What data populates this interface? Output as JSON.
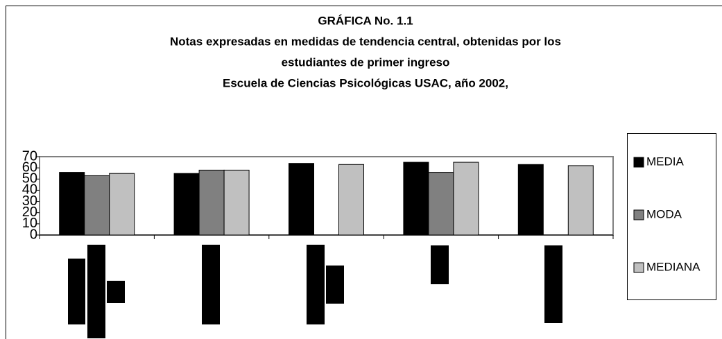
{
  "chart_data": {
    "type": "bar",
    "title": [
      "GRÁFICA No. 1.1",
      "Notas expresadas en medidas de tendencia central, obtenidas por los",
      "estudiantes de primer ingreso",
      "Escuela de Ciencias Psicológicas USAC, año 2002,"
    ],
    "categories": [
      null,
      null,
      null,
      null,
      null
    ],
    "series": [
      {
        "name": "MEDIA",
        "color": "#000000",
        "values": [
          56,
          55,
          64,
          65,
          63
        ]
      },
      {
        "name": "MODA",
        "color": "#808080",
        "values": [
          53,
          58,
          null,
          56,
          null
        ]
      },
      {
        "name": "MEDIANA",
        "color": "#c0c0c0",
        "values": [
          55,
          58,
          63,
          65,
          62
        ]
      }
    ],
    "ylim": [
      0,
      70
    ],
    "yticks": [
      0,
      10,
      20,
      30,
      40,
      50,
      60,
      70
    ],
    "grid": false,
    "legend": "right"
  }
}
